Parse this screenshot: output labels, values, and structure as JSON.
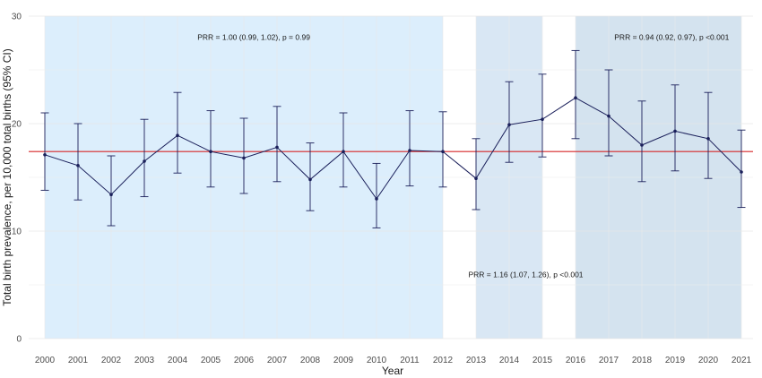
{
  "chart_data": {
    "type": "line",
    "xlabel": "Year",
    "ylabel": "Total birth prevalence, per 10,000 total births (95% CI)",
    "ylim": [
      0,
      30
    ],
    "yticks": [
      0,
      10,
      20,
      30
    ],
    "grid": true,
    "x": [
      2000,
      2001,
      2002,
      2003,
      2004,
      2005,
      2006,
      2007,
      2008,
      2009,
      2010,
      2011,
      2012,
      2013,
      2014,
      2015,
      2016,
      2017,
      2018,
      2019,
      2020,
      2021
    ],
    "series": [
      {
        "values": [
          17.1,
          16.1,
          13.4,
          16.5,
          18.9,
          17.4,
          16.8,
          17.8,
          14.8,
          17.4,
          13.0,
          17.5,
          17.4,
          14.9,
          19.9,
          20.4,
          22.4,
          20.7,
          18.0,
          19.3,
          18.6,
          15.5
        ],
        "ci_low": [
          13.8,
          12.9,
          10.5,
          13.2,
          15.4,
          14.1,
          13.5,
          14.6,
          11.9,
          14.1,
          10.3,
          14.2,
          14.1,
          12.0,
          16.4,
          16.9,
          18.6,
          17.0,
          14.6,
          15.6,
          14.9,
          12.2
        ],
        "ci_high": [
          21.0,
          20.0,
          17.0,
          20.4,
          22.9,
          21.2,
          20.5,
          21.6,
          18.2,
          21.0,
          16.3,
          21.2,
          21.1,
          18.6,
          23.9,
          24.6,
          26.8,
          25.0,
          22.1,
          23.6,
          22.9,
          19.4
        ],
        "color": "#1a1f5a"
      }
    ],
    "reference_line": {
      "value": 17.4,
      "color": "#d62728"
    },
    "regions": [
      {
        "from": 2000,
        "to": 2012,
        "color": "#dceefc",
        "annotation": "PRR = 1.00 (0.99, 1.02), p = 0.99",
        "annotation_y": 27.8,
        "annotation_x": 2006.3
      },
      {
        "from": 2013,
        "to": 2015,
        "color": "#d9e7f4",
        "annotation": "PRR = 1.16 (1.07, 1.26), p <0.001",
        "annotation_y": 5.7,
        "annotation_x": 2014.5
      },
      {
        "from": 2016,
        "to": 2021,
        "color": "#d4e3ef",
        "annotation": "PRR = 0.94 (0.92, 0.97), p <0.001",
        "annotation_y": 27.8,
        "annotation_x": 2018.9
      }
    ]
  }
}
